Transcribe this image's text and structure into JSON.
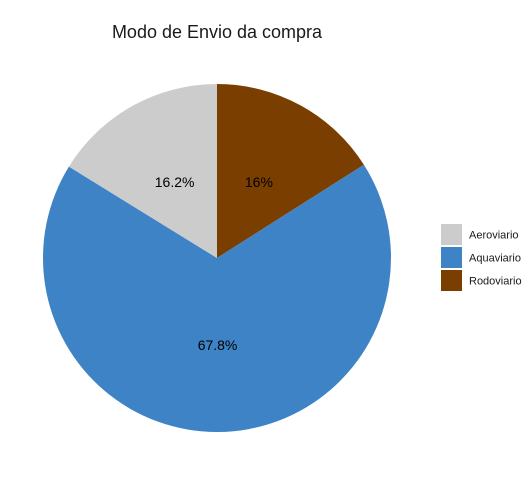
{
  "chart_data": {
    "type": "pie",
    "title": "Modo de Envio da compra",
    "slices": [
      {
        "name": "Rodoviario",
        "value": 16.0,
        "label": "16%",
        "color": "#7a3f00"
      },
      {
        "name": "Aquaviario",
        "value": 67.8,
        "label": "67.8%",
        "color": "#3d83c6"
      },
      {
        "name": "Aeroviario",
        "value": 16.2,
        "label": "16.2%",
        "color": "#cccccc"
      }
    ],
    "legend": {
      "position": "right",
      "entries": [
        {
          "name": "Aeroviario",
          "color": "#cccccc"
        },
        {
          "name": "Aquaviario",
          "color": "#3d83c6"
        },
        {
          "name": "Rodoviario",
          "color": "#7a3f00"
        }
      ]
    }
  }
}
